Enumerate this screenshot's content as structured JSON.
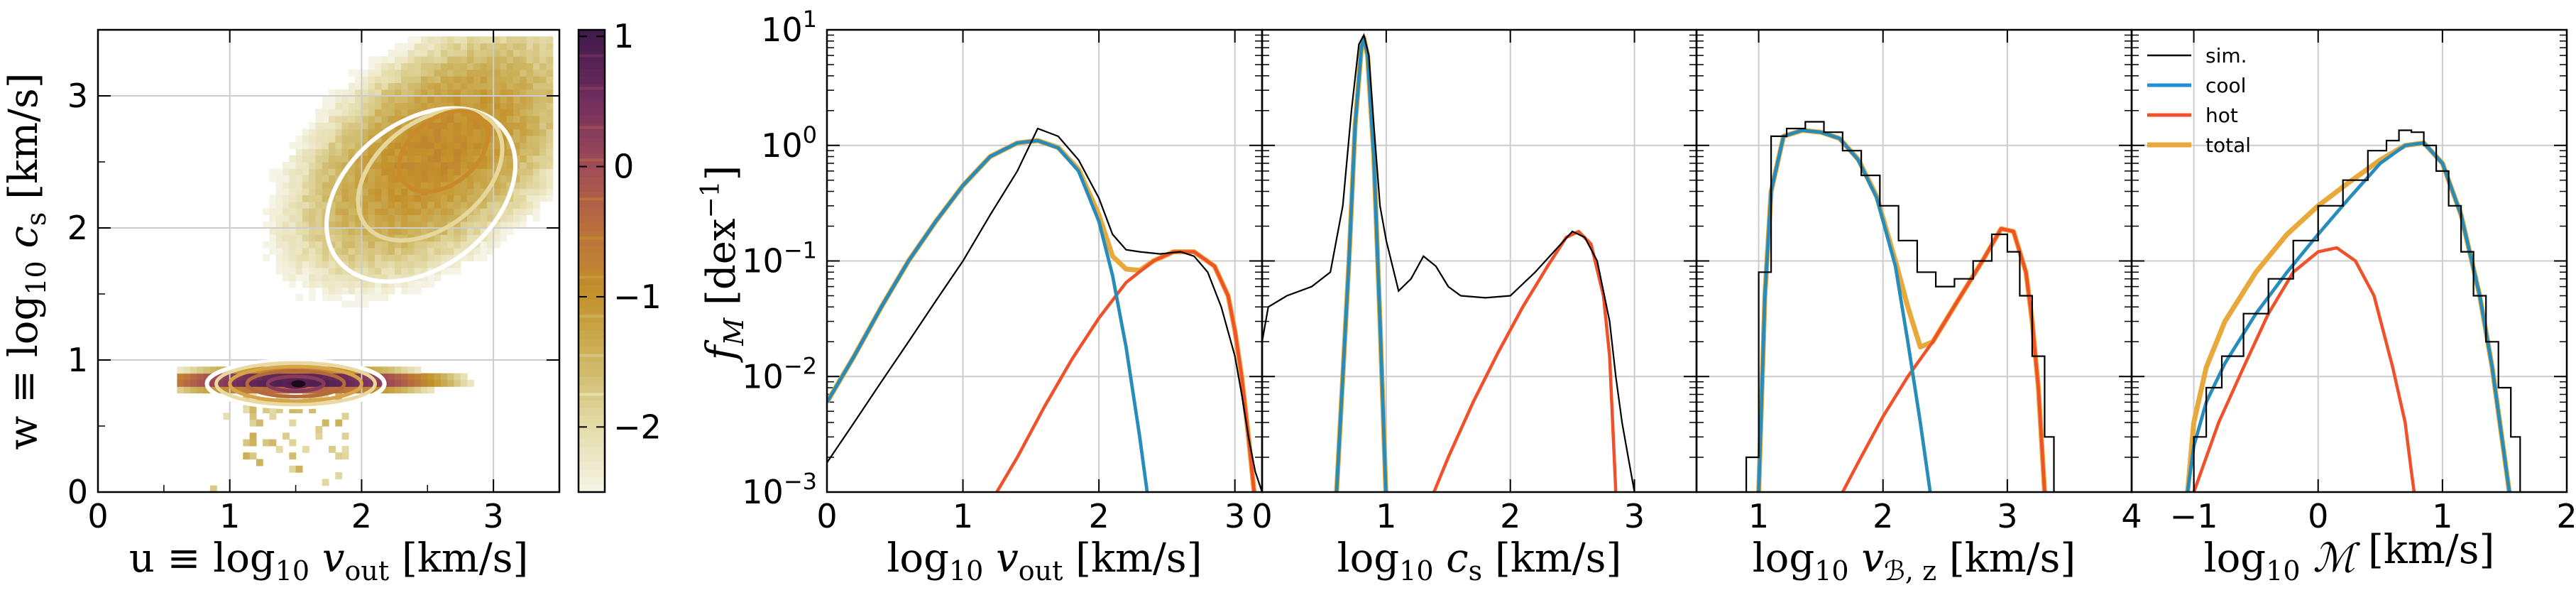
{
  "colors": {
    "sim": "#000000",
    "cool": "#1f8fd6",
    "hot": "#f0502a",
    "total": "#e8a93a",
    "grid": "#cccccc",
    "cmap": [
      "#f6f4e6",
      "#e4dcaa",
      "#cdb560",
      "#c4912a",
      "#bb6f3d",
      "#9c4a58",
      "#6e2c5e",
      "#3e1a4a"
    ]
  },
  "chart_data": [
    {
      "type": "heatmap",
      "id": "phase",
      "xlabel_pre": "u ≡ log",
      "xlabel_sub": "10",
      "xlabel_post": " v",
      "xlabel_sub2": "out",
      "xlabel_unit": " [km/s]",
      "ylabel_pre": "w ≡ log",
      "ylabel_sub": "10",
      "ylabel_post": " c",
      "ylabel_sub2": "s",
      "ylabel_unit": " [km/s]",
      "xlim": [
        0,
        3.5
      ],
      "ylim": [
        0,
        3.5
      ],
      "xticks": [
        "0",
        "1",
        "2",
        "3"
      ],
      "yticks": [
        "0",
        "1",
        "2",
        "3"
      ],
      "cool_component": {
        "u": 1.5,
        "w": 0.82,
        "su": 0.55,
        "sw": 0.045,
        "peak": 1.0
      },
      "hot_component": {
        "u": 2.55,
        "w": 2.55,
        "su": 0.45,
        "sw": 0.45,
        "peak": -0.9
      },
      "contour_levels_cool": [
        0.0,
        0.2,
        0.45,
        0.7,
        0.9,
        0.98
      ],
      "contour_levels_hot": [
        0.15,
        0.4,
        0.7
      ],
      "colorbar": {
        "ticks": [
          "1",
          "0",
          "−1",
          "−2"
        ],
        "tick_values": [
          1,
          0,
          -1,
          -2
        ],
        "range": [
          -2.5,
          1.05
        ]
      }
    },
    {
      "type": "line",
      "id": "vout",
      "xlabel_pre": "log",
      "xlabel_sub": "10",
      "xlabel_post": " v",
      "xlabel_sub2": "out",
      "xlabel_unit": " [km/s]",
      "xlim": [
        0,
        3.2
      ],
      "xticks": [
        "0",
        "1",
        "2",
        "3"
      ],
      "xtick_values": [
        0,
        1,
        2,
        3
      ],
      "ylabel": "f",
      "ylabel_sub": "M",
      "ylabel_unit": " [dex",
      "ylabel_sup": "−1",
      "ylabel_close": "]",
      "yscale": "log",
      "ylim": [
        0.001,
        10
      ],
      "yticks": [
        "10",
        "10",
        "10",
        "10",
        "10"
      ],
      "ytick_exps": [
        "−3",
        "−2",
        "−1",
        "0",
        "1"
      ],
      "ytick_labels_plain": [
        "10-3",
        "10-2",
        "10-1",
        "100",
        "101"
      ],
      "sim": {
        "x": [
          0,
          0.2,
          0.4,
          0.6,
          0.8,
          1.0,
          1.2,
          1.4,
          1.55,
          1.7,
          1.85,
          2.0,
          2.1,
          2.2,
          2.3,
          2.45,
          2.6,
          2.7,
          2.8,
          2.9,
          3.0,
          3.05,
          3.1,
          3.15,
          3.2
        ],
        "y": [
          0.0018,
          0.004,
          0.009,
          0.02,
          0.045,
          0.1,
          0.25,
          0.6,
          1.4,
          1.2,
          0.75,
          0.35,
          0.17,
          0.125,
          0.12,
          0.115,
          0.12,
          0.11,
          0.08,
          0.04,
          0.015,
          0.007,
          0.003,
          0.0015,
          0.001
        ]
      },
      "cool": {
        "x": [
          0,
          0.2,
          0.4,
          0.6,
          0.8,
          1.0,
          1.2,
          1.4,
          1.55,
          1.7,
          1.85,
          2.0,
          2.1,
          2.2,
          2.3,
          2.4
        ],
        "y": [
          0.006,
          0.015,
          0.04,
          0.1,
          0.22,
          0.45,
          0.8,
          1.05,
          1.1,
          0.95,
          0.6,
          0.22,
          0.075,
          0.018,
          0.003,
          0.0004
        ]
      },
      "hot": {
        "x": [
          1.2,
          1.4,
          1.6,
          1.8,
          2.0,
          2.2,
          2.4,
          2.55,
          2.7,
          2.85,
          2.95,
          3.0,
          3.05,
          3.1,
          3.15
        ],
        "y": [
          0.0008,
          0.002,
          0.0055,
          0.014,
          0.032,
          0.065,
          0.1,
          0.12,
          0.12,
          0.09,
          0.05,
          0.025,
          0.01,
          0.003,
          0.0008
        ]
      },
      "total": {
        "x": [
          0,
          0.2,
          0.4,
          0.6,
          0.8,
          1.0,
          1.2,
          1.4,
          1.55,
          1.7,
          1.85,
          2.0,
          2.1,
          2.2,
          2.3,
          2.4,
          2.55,
          2.7,
          2.85,
          2.95,
          3.0,
          3.05,
          3.1,
          3.15
        ],
        "y": [
          0.006,
          0.015,
          0.04,
          0.1,
          0.22,
          0.45,
          0.8,
          1.05,
          1.1,
          0.96,
          0.62,
          0.25,
          0.11,
          0.085,
          0.083,
          0.1,
          0.12,
          0.12,
          0.09,
          0.05,
          0.025,
          0.01,
          0.003,
          0.0008
        ]
      }
    },
    {
      "type": "line",
      "id": "cs",
      "xlabel_pre": "log",
      "xlabel_sub": "10",
      "xlabel_post": " c",
      "xlabel_sub2": "s",
      "xlabel_unit": " [km/s]",
      "xlim": [
        0,
        3.5
      ],
      "xticks": [
        "0",
        "1",
        "2",
        "3"
      ],
      "xtick_values": [
        0,
        1,
        2,
        3
      ],
      "yscale": "log",
      "ylim": [
        0.001,
        10
      ],
      "sim": {
        "x": [
          0,
          0.05,
          0.2,
          0.4,
          0.55,
          0.65,
          0.72,
          0.78,
          0.82,
          0.86,
          0.9,
          0.95,
          1.0,
          1.1,
          1.2,
          1.3,
          1.4,
          1.5,
          1.6,
          1.8,
          2.0,
          2.2,
          2.35,
          2.5,
          2.6,
          2.7,
          2.8,
          2.85,
          2.9,
          2.95,
          3.0
        ],
        "y": [
          0.02,
          0.04,
          0.05,
          0.06,
          0.08,
          0.3,
          2.0,
          7.5,
          9.0,
          6.0,
          1.5,
          0.3,
          0.15,
          0.055,
          0.07,
          0.11,
          0.09,
          0.06,
          0.05,
          0.048,
          0.05,
          0.08,
          0.12,
          0.18,
          0.16,
          0.1,
          0.03,
          0.01,
          0.004,
          0.002,
          0.001
        ]
      },
      "cool": {
        "x": [
          0.6,
          0.65,
          0.7,
          0.75,
          0.8,
          0.82,
          0.85,
          0.9,
          0.95,
          1.0
        ],
        "y": [
          0.001,
          0.01,
          0.1,
          1.5,
          7.0,
          8.5,
          6.0,
          0.8,
          0.03,
          0.0008
        ]
      },
      "hot": {
        "x": [
          1.3,
          1.5,
          1.7,
          1.9,
          2.1,
          2.3,
          2.45,
          2.55,
          2.65,
          2.75,
          2.8,
          2.85
        ],
        "y": [
          0.0006,
          0.002,
          0.006,
          0.016,
          0.04,
          0.09,
          0.16,
          0.18,
          0.14,
          0.05,
          0.015,
          0.001
        ]
      },
      "total": {
        "x": [
          0.6,
          0.65,
          0.7,
          0.75,
          0.8,
          0.82,
          0.85,
          0.9,
          0.95,
          1.0
        ],
        "y": [
          0.001,
          0.01,
          0.1,
          1.5,
          7.0,
          8.5,
          6.0,
          0.8,
          0.03,
          0.0008
        ]
      }
    },
    {
      "type": "line",
      "id": "vbz",
      "xlabel_pre": "log",
      "xlabel_sub": "10",
      "xlabel_post": " v",
      "xlabel_sub2": "ℬ, z",
      "xlabel_unit": " [km/s]",
      "xlim": [
        0.5,
        4
      ],
      "xticks": [
        "1",
        "2",
        "3",
        "4"
      ],
      "xtick_values": [
        1,
        2,
        3,
        4
      ],
      "yscale": "log",
      "ylim": [
        0.001,
        10
      ],
      "sim": {
        "x": [
          0.85,
          0.95,
          1.05,
          1.15,
          1.3,
          1.45,
          1.6,
          1.75,
          1.9,
          2.05,
          2.2,
          2.35,
          2.5,
          2.65,
          2.8,
          2.95,
          3.05,
          3.15,
          3.25,
          3.35,
          3.4
        ],
        "y": [
          0.001,
          0.002,
          0.08,
          1.2,
          1.4,
          1.6,
          1.3,
          0.9,
          0.55,
          0.3,
          0.15,
          0.08,
          0.06,
          0.07,
          0.1,
          0.17,
          0.12,
          0.05,
          0.015,
          0.003,
          0.001
        ]
      },
      "cool": {
        "x": [
          1.0,
          1.05,
          1.1,
          1.2,
          1.35,
          1.5,
          1.65,
          1.8,
          1.95,
          2.1,
          2.2,
          2.3,
          2.4
        ],
        "y": [
          0.001,
          0.05,
          0.4,
          1.2,
          1.35,
          1.3,
          1.15,
          0.75,
          0.35,
          0.09,
          0.02,
          0.004,
          0.0007
        ]
      },
      "hot": {
        "x": [
          1.6,
          1.8,
          2.0,
          2.2,
          2.4,
          2.6,
          2.8,
          2.95,
          3.05,
          3.15,
          3.2,
          3.25,
          3.3
        ],
        "y": [
          0.0007,
          0.0018,
          0.0045,
          0.01,
          0.02,
          0.045,
          0.1,
          0.19,
          0.18,
          0.08,
          0.03,
          0.008,
          0.001
        ]
      },
      "total": {
        "x": [
          1.0,
          1.05,
          1.1,
          1.2,
          1.35,
          1.5,
          1.65,
          1.8,
          1.95,
          2.1,
          2.2,
          2.3,
          2.4,
          2.6,
          2.8,
          2.95,
          3.05,
          3.15,
          3.2,
          3.25,
          3.3
        ],
        "y": [
          0.001,
          0.05,
          0.4,
          1.2,
          1.35,
          1.3,
          1.15,
          0.76,
          0.36,
          0.1,
          0.04,
          0.018,
          0.02,
          0.045,
          0.1,
          0.19,
          0.18,
          0.08,
          0.03,
          0.008,
          0.001
        ]
      }
    },
    {
      "type": "line",
      "id": "mach",
      "xlabel_pre": "log",
      "xlabel_sub": "10",
      "xlabel_post": " ℳ",
      "xlabel_sub2": "",
      "xlabel_unit": " [km/s]",
      "xlim": [
        -1.5,
        2
      ],
      "xticks": [
        "−1",
        "0",
        "1",
        "2"
      ],
      "xtick_values": [
        -1,
        0,
        1,
        2
      ],
      "yscale": "log",
      "ylim": [
        0.001,
        10
      ],
      "sim": {
        "x": [
          -1.05,
          -0.95,
          -0.85,
          -0.7,
          -0.5,
          -0.3,
          -0.1,
          0.1,
          0.3,
          0.5,
          0.6,
          0.7,
          0.8,
          0.9,
          1.0,
          1.1,
          1.2,
          1.3,
          1.4,
          1.5,
          1.6,
          1.65
        ],
        "y": [
          0.001,
          0.003,
          0.008,
          0.015,
          0.035,
          0.07,
          0.15,
          0.3,
          0.5,
          0.9,
          1.1,
          1.35,
          1.3,
          1.0,
          0.6,
          0.3,
          0.12,
          0.05,
          0.02,
          0.008,
          0.003,
          0.001
        ]
      },
      "cool": {
        "x": [
          -1.05,
          -1.0,
          -0.9,
          -0.75,
          -0.5,
          -0.25,
          0,
          0.25,
          0.5,
          0.7,
          0.85,
          1.0,
          1.15,
          1.3,
          1.4,
          1.5,
          1.55
        ],
        "y": [
          0.001,
          0.0025,
          0.006,
          0.013,
          0.035,
          0.08,
          0.17,
          0.35,
          0.7,
          1.0,
          1.05,
          0.7,
          0.25,
          0.05,
          0.012,
          0.002,
          0.0008
        ]
      },
      "hot": {
        "x": [
          -1.0,
          -0.8,
          -0.6,
          -0.4,
          -0.2,
          0,
          0.15,
          0.3,
          0.45,
          0.6,
          0.7,
          0.75,
          0.8
        ],
        "y": [
          0.001,
          0.004,
          0.012,
          0.035,
          0.08,
          0.12,
          0.13,
          0.1,
          0.05,
          0.012,
          0.004,
          0.0015,
          0.0006
        ]
      },
      "total": {
        "x": [
          -1.05,
          -1.0,
          -0.9,
          -0.75,
          -0.5,
          -0.25,
          0,
          0.25,
          0.5,
          0.7,
          0.85,
          1.0,
          1.15,
          1.3,
          1.4,
          1.5,
          1.55
        ],
        "y": [
          0.001,
          0.004,
          0.012,
          0.03,
          0.08,
          0.17,
          0.3,
          0.48,
          0.75,
          1.0,
          1.05,
          0.7,
          0.25,
          0.05,
          0.012,
          0.002,
          0.0008
        ]
      },
      "legend": [
        {
          "key": "sim",
          "label": "sim."
        },
        {
          "key": "cool",
          "label": "cool"
        },
        {
          "key": "hot",
          "label": "hot"
        },
        {
          "key": "total",
          "label": "total"
        }
      ]
    }
  ]
}
